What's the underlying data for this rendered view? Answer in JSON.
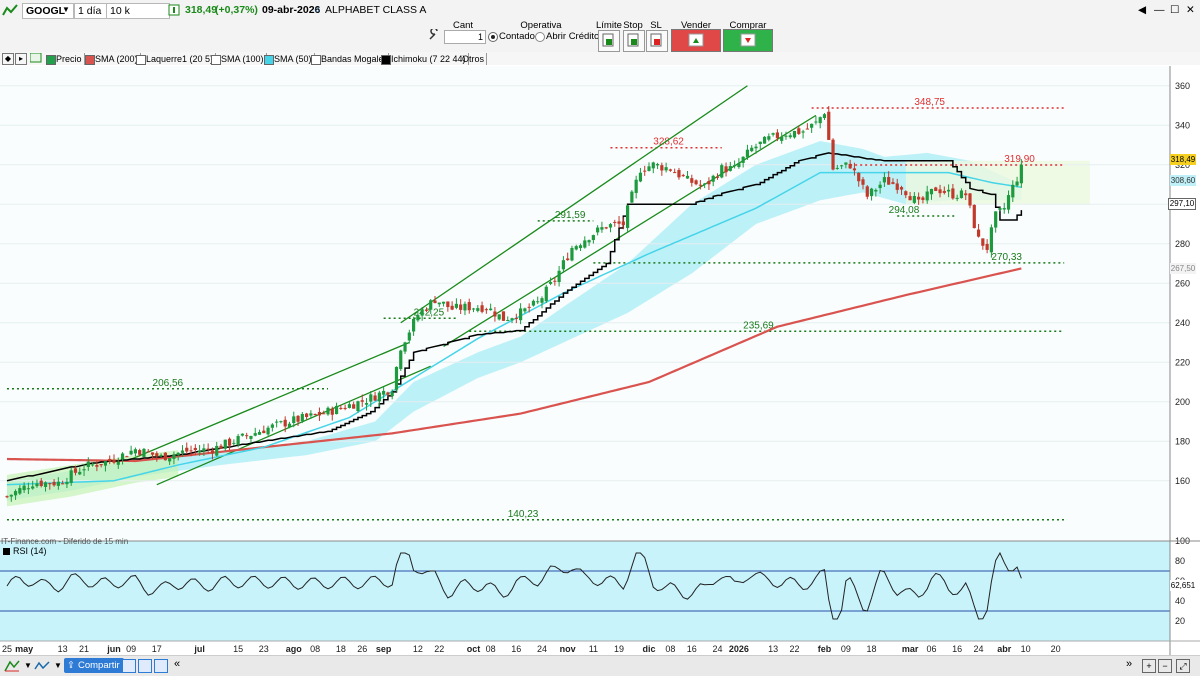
{
  "toolbar": {
    "ticker": "GOOGL",
    "period": "1 día",
    "units": "10 k unidades",
    "price": "318,49",
    "change": "(+0,37%)",
    "date": "09-abr-2026",
    "company": "ALPHABET CLASS A"
  },
  "order_bar": {
    "cant_label": "Cant",
    "cant_value": "1",
    "operativa_label": "Operativa",
    "contado": "Contado",
    "abrir_credito": "Abrir Crédito",
    "limite": "Límite",
    "stop": "Stop",
    "sl": "SL",
    "vender": "Vender MKT",
    "comprar": "Comprar MKT"
  },
  "legend": [
    "Precio",
    "SMA (200)",
    "Laquerre1 (20 5)",
    "SMA (100)",
    "SMA (50)",
    "Bandas Mogalef",
    "Ichimoku (7 22 44)",
    "Otros"
  ],
  "legend_colors": [
    "#22a04b",
    "#d9534f",
    "#ffffff",
    "#ffffff",
    "#45d4e8",
    "#ffffff",
    "#000000",
    "#ffffff"
  ],
  "watermark": "IT-Finance.com - Diferido de 15 min",
  "rsi_label": "RSI (14)",
  "share_label": "Compartir",
  "price_tags": {
    "last": "318,49",
    "sma50": "308,60",
    "ichimoku": "297,10",
    "sma200": "267,50"
  },
  "chart_data": {
    "type": "candlestick",
    "y_axis": {
      "min": 130,
      "max": 370,
      "ticks": [
        160,
        180,
        200,
        220,
        240,
        260,
        280,
        300,
        320,
        340,
        360
      ]
    },
    "rsi_axis": {
      "min": 0,
      "max": 100,
      "ticks": [
        20,
        40,
        60,
        80,
        100
      ],
      "levels": [
        70,
        30
      ],
      "last": "62,651"
    },
    "x_labels": [
      {
        "t": "25",
        "i": 0
      },
      {
        "t": "may",
        "i": 4
      },
      {
        "t": "13",
        "i": 13
      },
      {
        "t": "21",
        "i": 18
      },
      {
        "t": "jun",
        "i": 25
      },
      {
        "t": "09",
        "i": 29
      },
      {
        "t": "17",
        "i": 35
      },
      {
        "t": "jul",
        "i": 45
      },
      {
        "t": "15",
        "i": 54
      },
      {
        "t": "23",
        "i": 60
      },
      {
        "t": "ago",
        "i": 67
      },
      {
        "t": "08",
        "i": 72
      },
      {
        "t": "18",
        "i": 78
      },
      {
        "t": "26",
        "i": 83
      },
      {
        "t": "sep",
        "i": 88
      },
      {
        "t": "12",
        "i": 96
      },
      {
        "t": "22",
        "i": 101
      },
      {
        "t": "oct",
        "i": 109
      },
      {
        "t": "08",
        "i": 113
      },
      {
        "t": "16",
        "i": 119
      },
      {
        "t": "24",
        "i": 125
      },
      {
        "t": "nov",
        "i": 131
      },
      {
        "t": "11",
        "i": 137
      },
      {
        "t": "19",
        "i": 143
      },
      {
        "t": "dic",
        "i": 150
      },
      {
        "t": "08",
        "i": 155
      },
      {
        "t": "16",
        "i": 160
      },
      {
        "t": "24",
        "i": 166
      },
      {
        "t": "2026",
        "i": 171
      },
      {
        "t": "13",
        "i": 179
      },
      {
        "t": "22",
        "i": 184
      },
      {
        "t": "feb",
        "i": 191
      },
      {
        "t": "09",
        "i": 196
      },
      {
        "t": "18",
        "i": 202
      },
      {
        "t": "mar",
        "i": 211
      },
      {
        "t": "06",
        "i": 216
      },
      {
        "t": "16",
        "i": 222
      },
      {
        "t": "24",
        "i": 227
      },
      {
        "t": "abr",
        "i": 233
      },
      {
        "t": "10",
        "i": 238
      },
      {
        "t": "20",
        "i": 245
      }
    ],
    "close_anchors": [
      [
        0,
        152
      ],
      [
        6,
        159
      ],
      [
        12,
        159
      ],
      [
        18,
        167
      ],
      [
        24,
        170
      ],
      [
        30,
        176
      ],
      [
        36,
        172
      ],
      [
        42,
        175
      ],
      [
        48,
        176
      ],
      [
        54,
        181
      ],
      [
        60,
        186
      ],
      [
        66,
        190
      ],
      [
        72,
        193
      ],
      [
        78,
        197
      ],
      [
        84,
        201
      ],
      [
        90,
        207
      ],
      [
        92,
        228
      ],
      [
        96,
        244
      ],
      [
        100,
        252
      ],
      [
        104,
        247
      ],
      [
        108,
        248
      ],
      [
        112,
        248
      ],
      [
        116,
        242
      ],
      [
        120,
        245
      ],
      [
        124,
        250
      ],
      [
        128,
        262
      ],
      [
        132,
        278
      ],
      [
        136,
        284
      ],
      [
        140,
        289
      ],
      [
        144,
        290
      ],
      [
        148,
        318
      ],
      [
        151,
        320
      ],
      [
        155,
        318
      ],
      [
        159,
        312
      ],
      [
        163,
        309
      ],
      [
        167,
        318
      ],
      [
        170,
        318
      ],
      [
        174,
        328
      ],
      [
        178,
        333
      ],
      [
        182,
        336
      ],
      [
        186,
        337
      ],
      [
        189,
        341
      ],
      [
        191,
        347
      ],
      [
        193,
        318
      ],
      [
        197,
        320
      ],
      [
        201,
        304
      ],
      [
        205,
        312
      ],
      [
        209,
        309
      ],
      [
        213,
        300
      ],
      [
        217,
        308
      ],
      [
        221,
        305
      ],
      [
        224,
        305
      ],
      [
        227,
        282
      ],
      [
        229,
        278
      ],
      [
        231,
        294
      ],
      [
        233,
        298
      ],
      [
        234,
        304
      ],
      [
        237,
        318
      ]
    ],
    "sma200_anchors": [
      [
        0,
        171
      ],
      [
        30,
        170
      ],
      [
        60,
        177
      ],
      [
        90,
        184
      ],
      [
        120,
        194
      ],
      [
        150,
        210
      ],
      [
        180,
        238
      ],
      [
        210,
        254
      ],
      [
        237,
        267.5
      ]
    ],
    "sma50_anchors": [
      [
        0,
        158
      ],
      [
        25,
        160
      ],
      [
        40,
        168
      ],
      [
        60,
        177
      ],
      [
        80,
        192
      ],
      [
        95,
        212
      ],
      [
        110,
        232
      ],
      [
        130,
        255
      ],
      [
        150,
        275
      ],
      [
        175,
        298
      ],
      [
        190,
        316
      ],
      [
        205,
        316
      ],
      [
        220,
        316
      ],
      [
        230,
        311
      ],
      [
        237,
        308.6
      ]
    ],
    "ichimoku_anchors": [
      [
        0,
        160
      ],
      [
        20,
        169
      ],
      [
        40,
        173
      ],
      [
        60,
        180
      ],
      [
        75,
        185
      ],
      [
        85,
        195
      ],
      [
        90,
        205
      ],
      [
        95,
        225
      ],
      [
        110,
        234
      ],
      [
        120,
        236
      ],
      [
        130,
        255
      ],
      [
        140,
        270
      ],
      [
        145,
        300
      ],
      [
        160,
        300
      ],
      [
        168,
        306
      ],
      [
        175,
        310
      ],
      [
        185,
        322
      ],
      [
        192,
        326
      ],
      [
        205,
        322
      ],
      [
        220,
        322
      ],
      [
        225,
        308
      ],
      [
        230,
        305
      ],
      [
        232,
        292
      ],
      [
        235,
        292
      ],
      [
        237,
        297.1
      ]
    ],
    "cloud_upper": [
      [
        0,
        160
      ],
      [
        15,
        165
      ],
      [
        30,
        170
      ],
      [
        50,
        175
      ],
      [
        70,
        180
      ],
      [
        86,
        190
      ],
      [
        95,
        210
      ],
      [
        110,
        225
      ],
      [
        120,
        233
      ],
      [
        130,
        248
      ],
      [
        145,
        270
      ],
      [
        160,
        300
      ],
      [
        175,
        320
      ],
      [
        190,
        332
      ],
      [
        200,
        328
      ],
      [
        205,
        324
      ],
      [
        215,
        326
      ],
      [
        225,
        322
      ],
      [
        237,
        310
      ]
    ],
    "cloud_lower": [
      [
        0,
        150
      ],
      [
        15,
        155
      ],
      [
        30,
        162
      ],
      [
        50,
        168
      ],
      [
        70,
        173
      ],
      [
        86,
        180
      ],
      [
        95,
        195
      ],
      [
        110,
        212
      ],
      [
        120,
        220
      ],
      [
        130,
        230
      ],
      [
        145,
        245
      ],
      [
        160,
        265
      ],
      [
        175,
        290
      ],
      [
        190,
        302
      ],
      [
        200,
        306
      ],
      [
        210,
        300
      ],
      [
        220,
        302
      ],
      [
        237,
        302
      ]
    ],
    "channel_lines": [
      {
        "x1": 28,
        "y1": 170,
        "x2": 94,
        "y2": 230,
        "color": "#1a8a1a"
      },
      {
        "x1": 35,
        "y1": 158,
        "x2": 99,
        "y2": 218,
        "color": "#1a8a1a"
      },
      {
        "x1": 92,
        "y1": 240,
        "x2": 173,
        "y2": 360,
        "color": "#1a8a1a"
      },
      {
        "x1": 102,
        "y1": 228,
        "x2": 189,
        "y2": 345,
        "color": "#1a8a1a"
      }
    ],
    "levels": [
      {
        "label": "206,56",
        "value": 206.56,
        "start": 0,
        "end": 75,
        "color": "#1a7a1a",
        "lx": 34
      },
      {
        "label": "140,23",
        "value": 140.23,
        "start": 0,
        "end": 247,
        "color": "#1a7a1a",
        "lx": 117
      },
      {
        "label": "242,25",
        "value": 242.25,
        "start": 88,
        "end": 105,
        "color": "#1a7a1a",
        "lx": 95
      },
      {
        "label": "235,69",
        "value": 235.69,
        "start": 108,
        "end": 247,
        "color": "#1a7a1a",
        "lx": 172
      },
      {
        "label": "270,33",
        "value": 270.33,
        "start": 137,
        "end": 247,
        "color": "#1a7a1a",
        "lx": 230
      },
      {
        "label": "291,59",
        "value": 291.59,
        "start": 124,
        "end": 137,
        "color": "#1a7a1a",
        "lx": 128
      },
      {
        "label": "294,08",
        "value": 294.08,
        "start": 208,
        "end": 222,
        "color": "#1a7a1a",
        "lx": 206
      },
      {
        "label": "328,62",
        "value": 328.62,
        "start": 141,
        "end": 167,
        "color": "#e03030",
        "lx": 151
      },
      {
        "label": "348,75",
        "value": 348.75,
        "start": 188,
        "end": 247,
        "color": "#e03030",
        "lx": 212
      },
      {
        "label": "319,90",
        "value": 319.9,
        "start": 197,
        "end": 247,
        "color": "#e03030",
        "lx": 233
      }
    ]
  }
}
